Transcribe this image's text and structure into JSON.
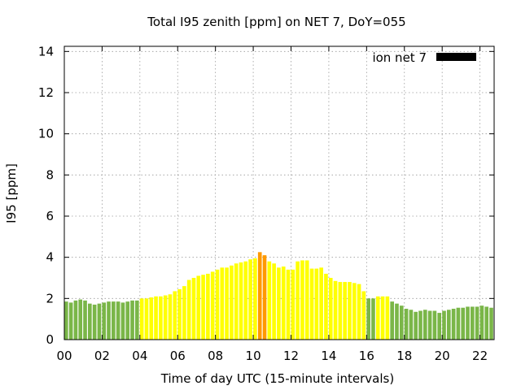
{
  "chart_data": {
    "type": "bar",
    "title": "Total I95 zenith [ppm] on NET 7, DoY=055",
    "xlabel": "Time of day UTC (15-minute intervals)",
    "ylabel": "I95 [ppm]",
    "xlim": [
      0,
      22.75
    ],
    "ylim": [
      0,
      14.25
    ],
    "xticks": [
      {
        "value": 0,
        "label": "00"
      },
      {
        "value": 2,
        "label": "02"
      },
      {
        "value": 4,
        "label": "04"
      },
      {
        "value": 6,
        "label": "06"
      },
      {
        "value": 8,
        "label": "08"
      },
      {
        "value": 10,
        "label": "10"
      },
      {
        "value": 12,
        "label": "12"
      },
      {
        "value": 14,
        "label": "14"
      },
      {
        "value": 16,
        "label": "16"
      },
      {
        "value": 18,
        "label": "18"
      },
      {
        "value": 20,
        "label": "20"
      },
      {
        "value": 22,
        "label": "22"
      }
    ],
    "yticks": [
      0,
      2,
      4,
      6,
      8,
      10,
      12,
      14
    ],
    "grid": true,
    "legend_position": "top-right",
    "series": [
      {
        "name": "ion net 7",
        "legend_color": "#000000",
        "interval_hours": 0.25,
        "x_start": 0,
        "values": [
          1.85,
          1.8,
          1.9,
          1.95,
          1.9,
          1.75,
          1.7,
          1.75,
          1.8,
          1.85,
          1.85,
          1.85,
          1.8,
          1.85,
          1.9,
          1.9,
          2.0,
          2.0,
          2.05,
          2.1,
          2.1,
          2.15,
          2.2,
          2.35,
          2.45,
          2.6,
          2.9,
          3.0,
          3.1,
          3.15,
          3.2,
          3.3,
          3.4,
          3.5,
          3.5,
          3.6,
          3.7,
          3.75,
          3.8,
          3.9,
          3.95,
          4.25,
          4.1,
          3.8,
          3.7,
          3.5,
          3.55,
          3.4,
          3.4,
          3.8,
          3.85,
          3.85,
          3.45,
          3.45,
          3.5,
          3.2,
          3.0,
          2.85,
          2.8,
          2.8,
          2.8,
          2.75,
          2.7,
          2.35,
          2.0,
          2.0,
          2.1,
          2.1,
          2.1,
          1.85,
          1.75,
          1.65,
          1.5,
          1.45,
          1.35,
          1.4,
          1.45,
          1.4,
          1.4,
          1.3,
          1.4,
          1.45,
          1.5,
          1.55,
          1.55,
          1.6,
          1.6,
          1.6,
          1.65,
          1.6,
          1.55
        ],
        "colors": [
          "#7ab648",
          "#7ab648",
          "#7ab648",
          "#7ab648",
          "#7ab648",
          "#7ab648",
          "#7ab648",
          "#7ab648",
          "#7ab648",
          "#7ab648",
          "#7ab648",
          "#7ab648",
          "#7ab648",
          "#7ab648",
          "#7ab648",
          "#7ab648",
          "#ffff00",
          "#ffff00",
          "#ffff00",
          "#ffff00",
          "#ffff00",
          "#ffff00",
          "#ffff00",
          "#ffff00",
          "#ffff00",
          "#ffff00",
          "#ffff00",
          "#ffff00",
          "#ffff00",
          "#ffff00",
          "#ffff00",
          "#ffff00",
          "#ffff00",
          "#ffff00",
          "#ffff00",
          "#ffff00",
          "#ffff00",
          "#ffff00",
          "#ffff00",
          "#ffff00",
          "#ffff00",
          "#ff9900",
          "#ff9900",
          "#ffff00",
          "#ffff00",
          "#ffff00",
          "#ffff00",
          "#ffff00",
          "#ffff00",
          "#ffff00",
          "#ffff00",
          "#ffff00",
          "#ffff00",
          "#ffff00",
          "#ffff00",
          "#ffff00",
          "#ffff00",
          "#ffff00",
          "#ffff00",
          "#ffff00",
          "#ffff00",
          "#ffff00",
          "#ffff00",
          "#ffff00",
          "#7ab648",
          "#7ab648",
          "#ffff00",
          "#ffff00",
          "#ffff00",
          "#7ab648",
          "#7ab648",
          "#7ab648",
          "#7ab648",
          "#7ab648",
          "#7ab648",
          "#7ab648",
          "#7ab648",
          "#7ab648",
          "#7ab648",
          "#7ab648",
          "#7ab648",
          "#7ab648",
          "#7ab648",
          "#7ab648",
          "#7ab648",
          "#7ab648",
          "#7ab648",
          "#7ab648",
          "#7ab648",
          "#7ab648",
          "#7ab648"
        ]
      }
    ]
  }
}
